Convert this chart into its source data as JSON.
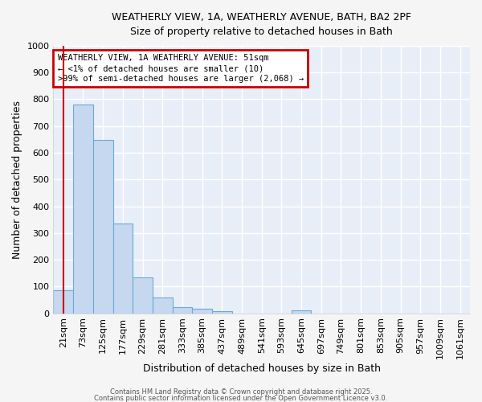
{
  "title_line1": "WEATHERLY VIEW, 1A, WEATHERLY AVENUE, BATH, BA2 2PF",
  "title_line2": "Size of property relative to detached houses in Bath",
  "xlabel": "Distribution of detached houses by size in Bath",
  "ylabel": "Number of detached properties",
  "categories": [
    "21sqm",
    "73sqm",
    "125sqm",
    "177sqm",
    "229sqm",
    "281sqm",
    "333sqm",
    "385sqm",
    "437sqm",
    "489sqm",
    "541sqm",
    "593sqm",
    "645sqm",
    "697sqm",
    "749sqm",
    "801sqm",
    "853sqm",
    "905sqm",
    "957sqm",
    "1009sqm",
    "1061sqm"
  ],
  "values": [
    85,
    780,
    648,
    335,
    133,
    60,
    22,
    18,
    9,
    0,
    0,
    0,
    10,
    0,
    0,
    0,
    0,
    0,
    0,
    0,
    0
  ],
  "bar_color": "#c5d8f0",
  "bar_edge_color": "#6aaad4",
  "annotation_text": "WEATHERLY VIEW, 1A WEATHERLY AVENUE: 51sqm\n← <1% of detached houses are smaller (10)\n>99% of semi-detached houses are larger (2,068) →",
  "annotation_box_color": "#ffffff",
  "annotation_box_edge": "#cc0000",
  "ylim": [
    0,
    1000
  ],
  "yticks": [
    0,
    100,
    200,
    300,
    400,
    500,
    600,
    700,
    800,
    900,
    1000
  ],
  "plot_bg_color": "#e8eef8",
  "fig_bg_color": "#f5f5f5",
  "grid_color": "#ffffff",
  "red_line_color": "#cc0000",
  "footer_line1": "Contains HM Land Registry data © Crown copyright and database right 2025.",
  "footer_line2": "Contains public sector information licensed under the Open Government Licence v3.0."
}
